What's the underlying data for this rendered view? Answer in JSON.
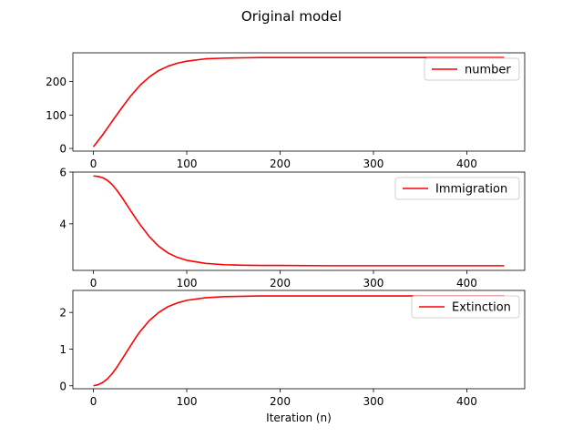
{
  "figure": {
    "title": "Original model"
  },
  "chart_data": [
    {
      "type": "line",
      "title": "",
      "xlabel": "",
      "ylabel": "",
      "xlim": [
        -22,
        462
      ],
      "ylim": [
        -8,
        286
      ],
      "xticks": [
        0,
        100,
        200,
        300,
        400
      ],
      "yticks": [
        0,
        100,
        200
      ],
      "grid": false,
      "legend": "upper-right",
      "series": [
        {
          "name": "number",
          "color": "#ff0000",
          "x": [
            0,
            10,
            20,
            30,
            40,
            50,
            60,
            70,
            80,
            90,
            100,
            120,
            140,
            160,
            180,
            200,
            250,
            300,
            350,
            400,
            440
          ],
          "y": [
            5,
            41,
            81,
            120,
            157,
            189,
            214,
            233,
            246,
            255,
            261,
            268,
            270,
            271,
            272,
            272,
            272,
            272,
            272,
            272,
            272
          ]
        }
      ]
    },
    {
      "type": "line",
      "title": "",
      "xlabel": "",
      "ylabel": "",
      "xlim": [
        -22,
        462
      ],
      "ylim": [
        2.2,
        6.0
      ],
      "xticks": [
        0,
        100,
        200,
        300,
        400
      ],
      "yticks": [
        4,
        6
      ],
      "grid": false,
      "legend": "upper-right",
      "series": [
        {
          "name": "Immigration",
          "color": "#ff0000",
          "x": [
            0,
            5,
            10,
            15,
            20,
            25,
            30,
            35,
            40,
            45,
            50,
            60,
            70,
            80,
            90,
            100,
            120,
            140,
            160,
            180,
            200,
            250,
            300,
            350,
            400,
            440
          ],
          "y": [
            5.85,
            5.83,
            5.78,
            5.68,
            5.52,
            5.3,
            5.05,
            4.78,
            4.5,
            4.23,
            3.97,
            3.5,
            3.13,
            2.87,
            2.7,
            2.59,
            2.47,
            2.42,
            2.4,
            2.39,
            2.39,
            2.38,
            2.38,
            2.38,
            2.38,
            2.38
          ]
        }
      ]
    },
    {
      "type": "line",
      "title": "",
      "xlabel": "Iteration (n)",
      "ylabel": "",
      "xlim": [
        -22,
        462
      ],
      "ylim": [
        -0.08,
        2.6
      ],
      "xticks": [
        0,
        100,
        200,
        300,
        400
      ],
      "yticks": [
        0,
        1,
        2
      ],
      "grid": false,
      "legend": "upper-right",
      "series": [
        {
          "name": "Extinction",
          "color": "#ff0000",
          "x": [
            0,
            5,
            10,
            15,
            20,
            25,
            30,
            35,
            40,
            45,
            50,
            60,
            70,
            80,
            90,
            100,
            120,
            140,
            160,
            180,
            200,
            250,
            300,
            350,
            400,
            440
          ],
          "y": [
            0.0,
            0.03,
            0.09,
            0.19,
            0.33,
            0.5,
            0.7,
            0.9,
            1.1,
            1.3,
            1.48,
            1.78,
            2.0,
            2.16,
            2.26,
            2.33,
            2.4,
            2.43,
            2.44,
            2.45,
            2.45,
            2.45,
            2.45,
            2.45,
            2.45,
            2.45
          ]
        }
      ]
    }
  ]
}
